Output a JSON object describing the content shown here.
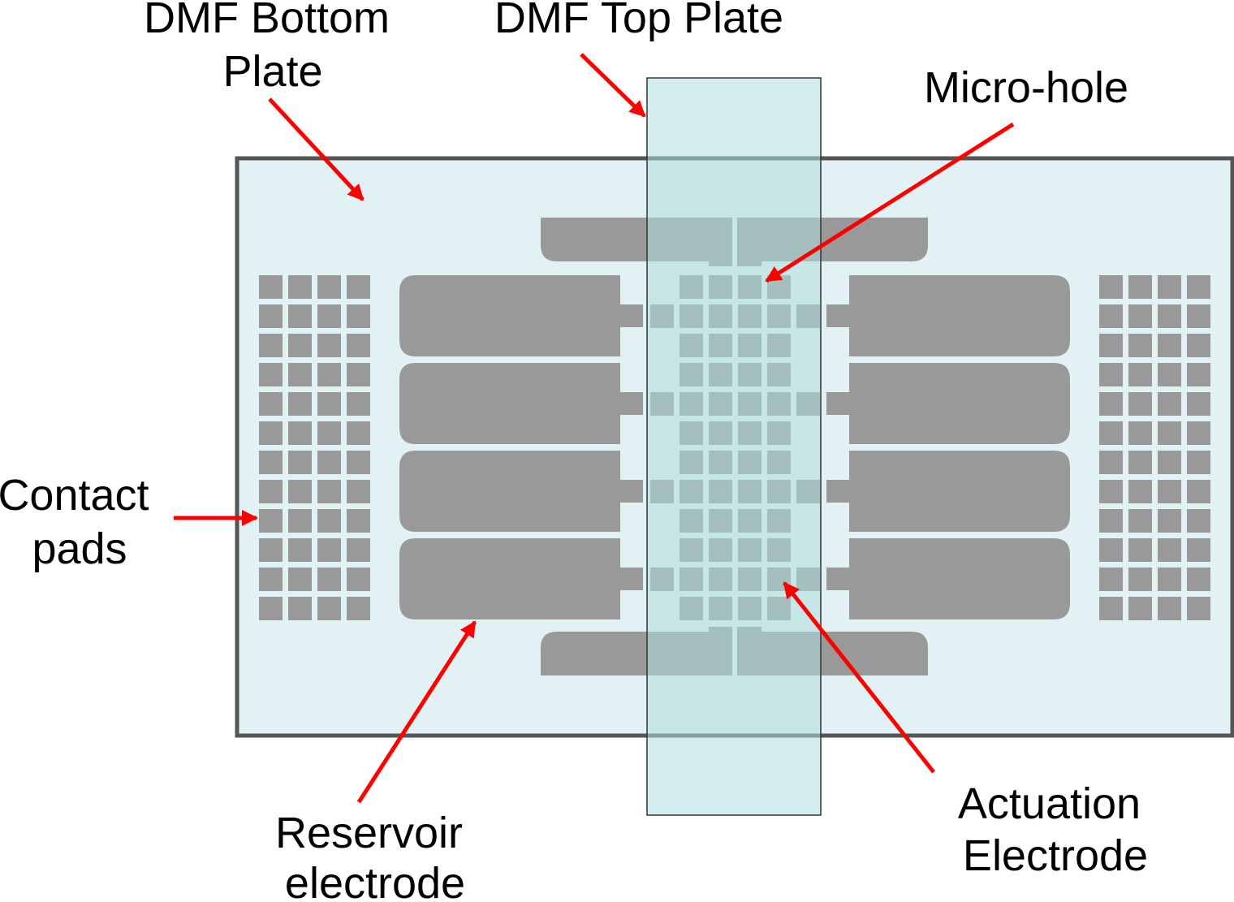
{
  "labels": {
    "bottom_plate": [
      "DMF Bottom",
      "Plate"
    ],
    "top_plate": "DMF Top Plate",
    "micro_hole": "Micro-hole",
    "contact_pads": [
      "Contact",
      "pads"
    ],
    "reservoir": [
      "Reservoir",
      "electrode"
    ],
    "actuation": [
      "Actuation",
      "Electrode"
    ]
  },
  "colors": {
    "bottom_plate_fill": "#e2f1f4",
    "plate_border": "#555555",
    "electrode": "#999999",
    "top_plate_fill": "#aedcdf",
    "arrow": "#ff0000"
  },
  "counts": {
    "contact_pad_columns_per_side": 4,
    "contact_pad_rows": 12,
    "reservoir_electrodes_per_side": 4,
    "actuation_grid_rows": 12
  }
}
